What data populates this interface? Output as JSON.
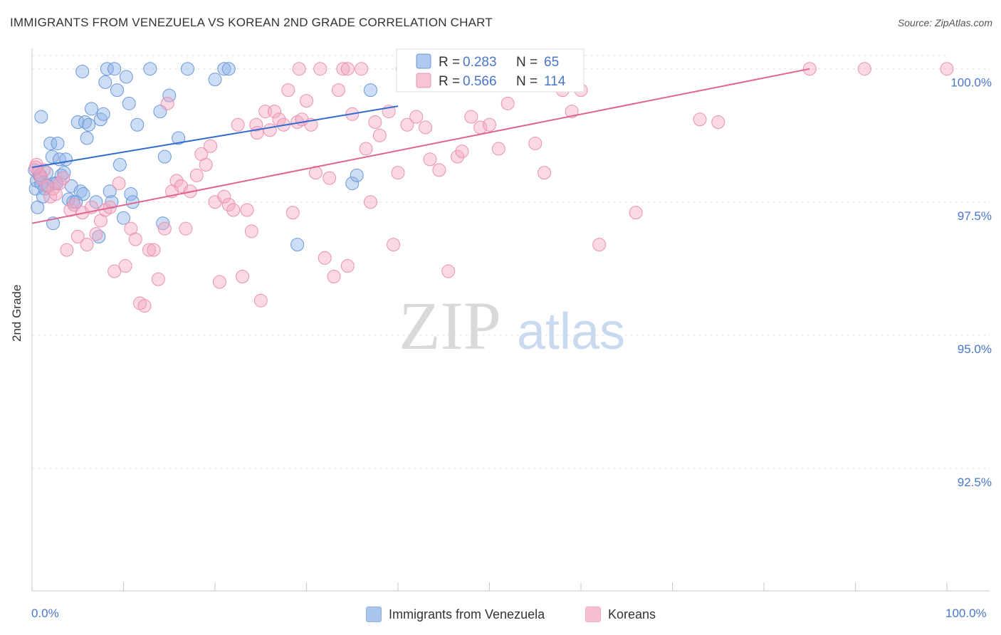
{
  "title": "IMMIGRANTS FROM VENEZUELA VS KOREAN 2ND GRADE CORRELATION CHART",
  "source": "Source: ZipAtlas.com",
  "watermark": {
    "zip": "ZIP",
    "atlas": "atlas"
  },
  "colors": {
    "blue": "#8fb3e8",
    "blue_stroke": "#6a98d8",
    "blue_line": "#2e6ccf",
    "pink": "#f4a9c4",
    "pink_stroke": "#e891b2",
    "pink_line": "#e0648f",
    "tick_text": "#4a76c9",
    "grid": "#e3e3e3"
  },
  "legend_stats": [
    {
      "r_label": "R = ",
      "r_value": "0.283",
      "n_label": "N = ",
      "n_value": "65",
      "color": "blue"
    },
    {
      "r_label": "R = ",
      "r_value": "0.566",
      "n_label": "N = ",
      "n_value": "114",
      "color": "pink"
    }
  ],
  "bottom_legend": [
    {
      "label": "Immigrants from Venezuela",
      "color": "blue"
    },
    {
      "label": "Koreans",
      "color": "pink"
    }
  ],
  "x_axis": {
    "left_label": "0.0%",
    "right_label": "100.0%"
  },
  "chart_data": {
    "type": "scatter",
    "title": "IMMIGRANTS FROM VENEZUELA VS KOREAN 2ND GRADE CORRELATION CHART",
    "xlabel": "",
    "ylabel": "2nd Grade",
    "xlim": [
      0,
      100
    ],
    "ylim": [
      90.2,
      100.25
    ],
    "y_ticks": [
      {
        "value": 100.0,
        "label": "100.0%"
      },
      {
        "value": 97.5,
        "label": "97.5%"
      },
      {
        "value": 95.0,
        "label": "95.0%"
      },
      {
        "value": 92.5,
        "label": "92.5%"
      }
    ],
    "x_ticks": [
      0,
      10,
      20,
      30,
      40,
      50,
      60,
      70,
      80,
      90,
      100
    ],
    "grid": true,
    "legend_position": "top-center",
    "series": [
      {
        "name": "Immigrants from Venezuela",
        "color": "blue",
        "trend": {
          "x": [
            0,
            40
          ],
          "y": [
            98.15,
            99.3
          ]
        },
        "points": [
          [
            0.3,
            98.1
          ],
          [
            0.4,
            97.75
          ],
          [
            0.5,
            97.9
          ],
          [
            0.6,
            97.4
          ],
          [
            0.8,
            98.0
          ],
          [
            1.0,
            97.85
          ],
          [
            1.2,
            97.6
          ],
          [
            1.4,
            97.75
          ],
          [
            1.6,
            98.05
          ],
          [
            1.8,
            97.8
          ],
          [
            2.0,
            98.6
          ],
          [
            2.2,
            98.35
          ],
          [
            2.5,
            97.85
          ],
          [
            2.8,
            98.6
          ],
          [
            3.0,
            98.3
          ],
          [
            3.2,
            98.0
          ],
          [
            3.5,
            98.05
          ],
          [
            4.0,
            97.55
          ],
          [
            4.3,
            97.8
          ],
          [
            4.5,
            97.5
          ],
          [
            5.0,
            99.0
          ],
          [
            5.3,
            97.7
          ],
          [
            5.6,
            97.65
          ],
          [
            5.8,
            99.0
          ],
          [
            6.0,
            98.7
          ],
          [
            6.5,
            99.25
          ],
          [
            7.0,
            97.5
          ],
          [
            7.5,
            99.05
          ],
          [
            7.8,
            99.15
          ],
          [
            8.0,
            99.75
          ],
          [
            8.2,
            100.0
          ],
          [
            8.5,
            97.7
          ],
          [
            8.7,
            97.5
          ],
          [
            9.0,
            100.0
          ],
          [
            9.3,
            99.6
          ],
          [
            9.6,
            98.2
          ],
          [
            10.0,
            97.2
          ],
          [
            10.3,
            99.85
          ],
          [
            10.6,
            99.35
          ],
          [
            10.8,
            97.65
          ],
          [
            11.0,
            97.5
          ],
          [
            11.5,
            98.95
          ],
          [
            14.0,
            99.2
          ],
          [
            14.5,
            98.35
          ],
          [
            15.0,
            99.5
          ],
          [
            16.0,
            98.7
          ],
          [
            17.0,
            100.0
          ],
          [
            20.0,
            99.8
          ],
          [
            21.0,
            100.0
          ],
          [
            21.5,
            100.0
          ],
          [
            2.3,
            97.1
          ],
          [
            3.7,
            98.3
          ],
          [
            6.2,
            98.95
          ],
          [
            7.3,
            96.85
          ],
          [
            14.3,
            97.1
          ],
          [
            1.0,
            99.1
          ],
          [
            5.5,
            99.95
          ],
          [
            29.0,
            96.7
          ],
          [
            35.0,
            97.85
          ],
          [
            35.5,
            98.0
          ],
          [
            37.0,
            99.6
          ],
          [
            0.9,
            98.0
          ],
          [
            4.8,
            97.5
          ],
          [
            2.7,
            97.85
          ],
          [
            12.9,
            100.0
          ]
        ]
      },
      {
        "name": "Koreans",
        "color": "pink",
        "trend": {
          "x": [
            0,
            85
          ],
          "y": [
            97.1,
            100.0
          ]
        },
        "points": [
          [
            0.5,
            98.2
          ],
          [
            0.7,
            98.05
          ],
          [
            1.0,
            97.95
          ],
          [
            1.3,
            98.1
          ],
          [
            1.6,
            97.8
          ],
          [
            2.0,
            97.6
          ],
          [
            2.3,
            97.75
          ],
          [
            2.6,
            97.65
          ],
          [
            3.0,
            97.85
          ],
          [
            3.4,
            97.95
          ],
          [
            3.8,
            96.6
          ],
          [
            4.2,
            97.35
          ],
          [
            4.6,
            97.45
          ],
          [
            5.0,
            96.85
          ],
          [
            5.5,
            97.3
          ],
          [
            6.0,
            96.7
          ],
          [
            6.5,
            97.4
          ],
          [
            7.0,
            96.9
          ],
          [
            7.5,
            97.15
          ],
          [
            8.0,
            97.35
          ],
          [
            8.5,
            97.4
          ],
          [
            9.0,
            96.2
          ],
          [
            9.5,
            97.85
          ],
          [
            10.2,
            96.3
          ],
          [
            10.8,
            97.0
          ],
          [
            11.3,
            96.8
          ],
          [
            11.8,
            95.6
          ],
          [
            12.3,
            95.55
          ],
          [
            12.8,
            96.6
          ],
          [
            13.3,
            96.6
          ],
          [
            13.8,
            96.05
          ],
          [
            14.5,
            97.0
          ],
          [
            14.8,
            99.35
          ],
          [
            15.3,
            97.7
          ],
          [
            15.8,
            97.9
          ],
          [
            16.3,
            97.8
          ],
          [
            16.8,
            97.0
          ],
          [
            17.3,
            97.7
          ],
          [
            18.0,
            98.0
          ],
          [
            18.5,
            98.4
          ],
          [
            19.0,
            98.2
          ],
          [
            19.5,
            98.55
          ],
          [
            20.0,
            97.5
          ],
          [
            20.5,
            96.0
          ],
          [
            21.0,
            97.6
          ],
          [
            21.5,
            97.45
          ],
          [
            22.0,
            97.35
          ],
          [
            22.5,
            98.95
          ],
          [
            23.0,
            96.1
          ],
          [
            23.5,
            97.35
          ],
          [
            24.0,
            96.95
          ],
          [
            24.5,
            98.95
          ],
          [
            25.0,
            95.65
          ],
          [
            25.5,
            99.2
          ],
          [
            26.0,
            98.85
          ],
          [
            26.5,
            99.2
          ],
          [
            27.0,
            99.05
          ],
          [
            27.5,
            98.95
          ],
          [
            28.0,
            99.6
          ],
          [
            28.5,
            97.3
          ],
          [
            29.0,
            99.0
          ],
          [
            29.5,
            99.05
          ],
          [
            30.0,
            99.4
          ],
          [
            30.5,
            98.95
          ],
          [
            31.0,
            98.05
          ],
          [
            31.5,
            100.0
          ],
          [
            32.0,
            96.45
          ],
          [
            32.5,
            97.95
          ],
          [
            33.0,
            96.1
          ],
          [
            33.5,
            99.6
          ],
          [
            34.0,
            100.0
          ],
          [
            34.5,
            96.3
          ],
          [
            35.0,
            99.15
          ],
          [
            36.0,
            100.0
          ],
          [
            36.5,
            98.5
          ],
          [
            37.0,
            97.5
          ],
          [
            37.5,
            99.0
          ],
          [
            38.0,
            98.75
          ],
          [
            39.0,
            99.2
          ],
          [
            39.5,
            96.7
          ],
          [
            40.0,
            98.05
          ],
          [
            41.0,
            98.95
          ],
          [
            42.0,
            99.1
          ],
          [
            43.0,
            98.9
          ],
          [
            43.5,
            98.3
          ],
          [
            44.5,
            98.1
          ],
          [
            45.5,
            96.2
          ],
          [
            46.5,
            98.35
          ],
          [
            47.0,
            98.45
          ],
          [
            48.0,
            99.1
          ],
          [
            49.0,
            98.9
          ],
          [
            50.0,
            98.95
          ],
          [
            51.0,
            98.5
          ],
          [
            52.0,
            99.35
          ],
          [
            53.0,
            99.75
          ],
          [
            54.0,
            100.0
          ],
          [
            56.0,
            98.05
          ],
          [
            58.0,
            99.6
          ],
          [
            59.0,
            99.2
          ],
          [
            60.0,
            99.6
          ],
          [
            62.0,
            96.7
          ],
          [
            66.0,
            97.3
          ],
          [
            73.0,
            99.05
          ],
          [
            75.0,
            99.0
          ],
          [
            85.0,
            100.0
          ],
          [
            91.0,
            100.0
          ],
          [
            100.0,
            100.0
          ],
          [
            0.4,
            98.15
          ],
          [
            24.6,
            98.8
          ],
          [
            29.2,
            100.0
          ],
          [
            40.5,
            100.0
          ],
          [
            46.0,
            100.0
          ],
          [
            55.0,
            98.6
          ],
          [
            34.5,
            100.0
          ]
        ]
      }
    ]
  }
}
